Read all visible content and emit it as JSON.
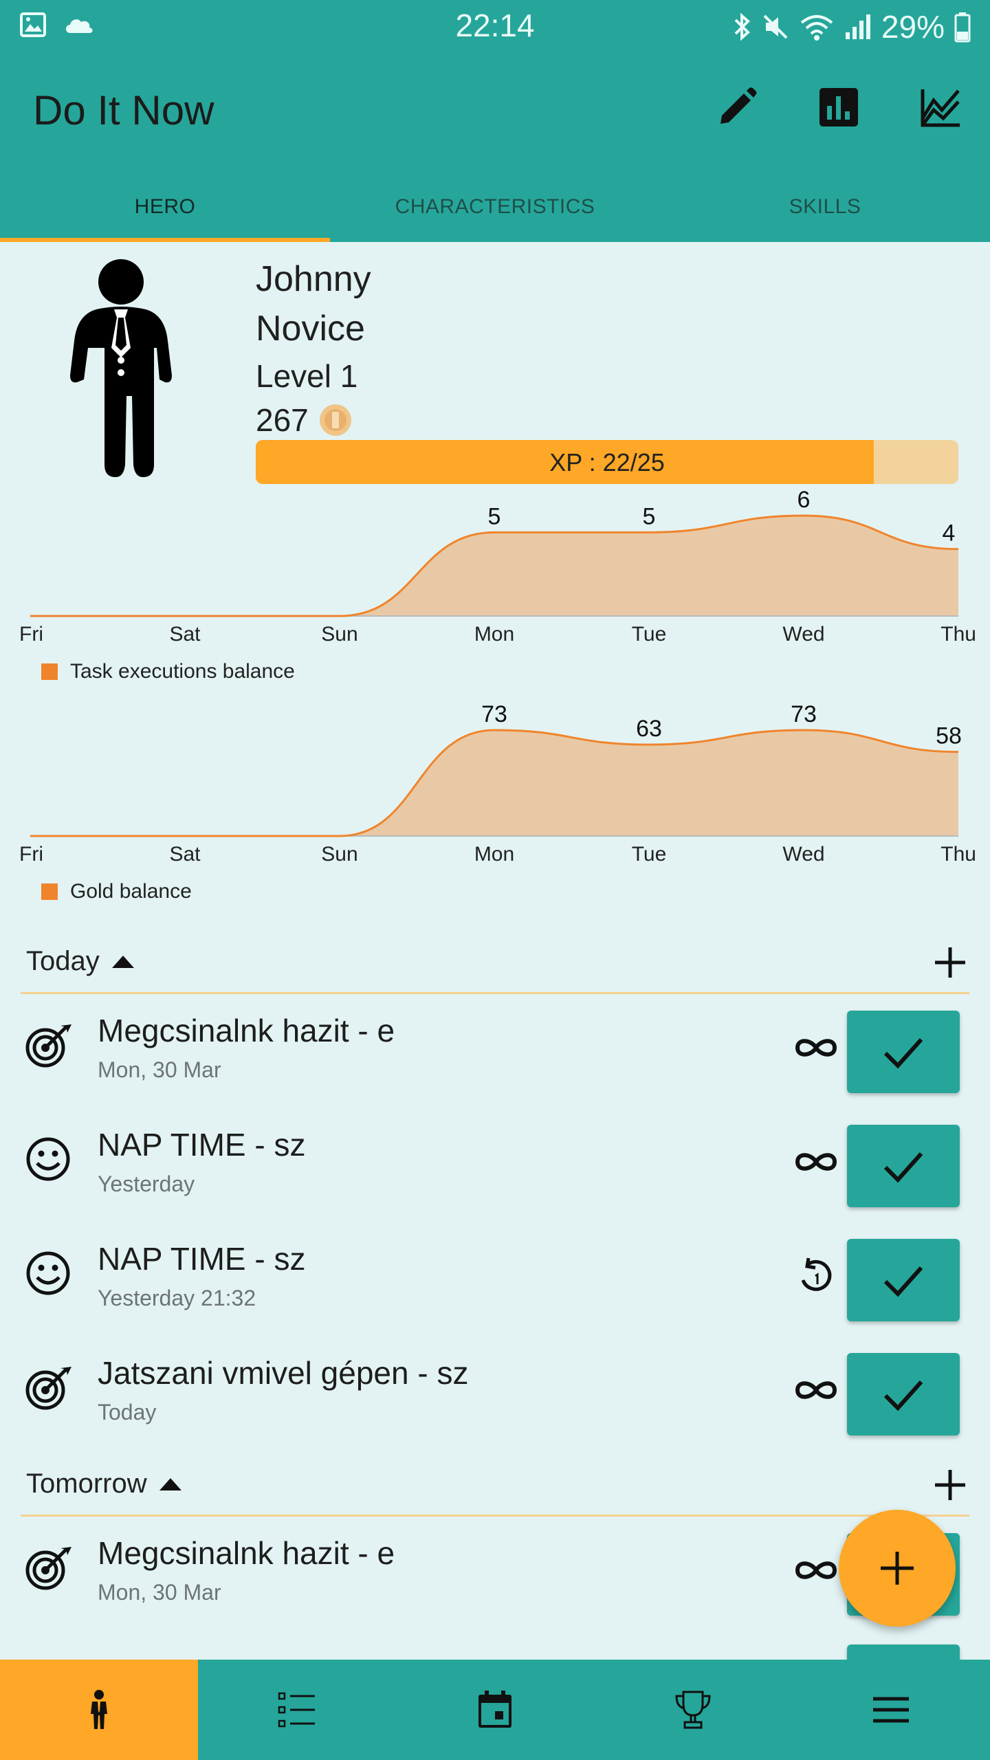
{
  "status_bar": {
    "time": "22:14",
    "battery": "29%",
    "left_icons": [
      "image-icon",
      "cloud-icon"
    ],
    "right_icons": [
      "bluetooth-icon",
      "mute-icon",
      "wifi-icon",
      "signal-icon",
      "battery-icon"
    ]
  },
  "app": {
    "title": "Do It Now",
    "toolbar_icons": [
      "edit-icon",
      "bar-chart-icon",
      "line-chart-icon"
    ]
  },
  "tabs": [
    {
      "label": "HERO",
      "active": true
    },
    {
      "label": "CHARACTERISTICS",
      "active": false
    },
    {
      "label": "SKILLS",
      "active": false
    }
  ],
  "hero": {
    "name": "Johnny",
    "rank": "Novice",
    "level": "Level 1",
    "gold": "267",
    "xp_label": "XP : 22/25",
    "xp_current": 22,
    "xp_max": 25
  },
  "chart_data": [
    {
      "type": "area",
      "categories": [
        "Fri",
        "Sat",
        "Sun",
        "Mon",
        "Tue",
        "Wed",
        "Thu"
      ],
      "series": [
        {
          "name": "Task executions balance",
          "values": [
            0,
            0,
            0,
            5,
            5,
            6,
            4
          ]
        }
      ],
      "data_labels": [
        "",
        "",
        "",
        "5",
        "5",
        "6",
        "4"
      ],
      "ylim": [
        0,
        6
      ],
      "grid": false,
      "legend": "bottom-left",
      "color": "#f0842c"
    },
    {
      "type": "area",
      "categories": [
        "Fri",
        "Sat",
        "Sun",
        "Mon",
        "Tue",
        "Wed",
        "Thu"
      ],
      "series": [
        {
          "name": "Gold balance",
          "values": [
            0,
            0,
            0,
            73,
            63,
            73,
            58
          ]
        }
      ],
      "data_labels": [
        "",
        "",
        "",
        "73",
        "63",
        "73",
        "58"
      ],
      "ylim": [
        0,
        73
      ],
      "grid": false,
      "legend": "bottom-left",
      "color": "#f0842c"
    }
  ],
  "sections": {
    "today": {
      "title": "Today",
      "tasks": [
        {
          "title": "Megcsinalnk hazit - e",
          "subtitle": "Mon, 30 Mar",
          "icon": "target-icon",
          "repeat": "infinity-icon"
        },
        {
          "title": "NAP TIME - sz",
          "subtitle": "Yesterday",
          "icon": "smiley-icon",
          "repeat": "infinity-icon"
        },
        {
          "title": "NAP TIME - sz",
          "subtitle": "Yesterday 21:32",
          "icon": "smiley-icon",
          "repeat": "repeat-once-icon"
        },
        {
          "title": "Jatszani vmivel gépen - sz",
          "subtitle": "Today",
          "icon": "target-icon",
          "repeat": "infinity-icon"
        }
      ]
    },
    "tomorrow": {
      "title": "Tomorrow",
      "tasks": [
        {
          "title": "Megcsinalnk hazit - e",
          "subtitle": "Mon, 30 Mar",
          "icon": "target-icon",
          "repeat": "infinity-icon"
        }
      ]
    }
  },
  "bottom_nav": [
    {
      "icon": "hero-icon",
      "active": true
    },
    {
      "icon": "task-list-icon",
      "active": false
    },
    {
      "icon": "calendar-icon",
      "active": false
    },
    {
      "icon": "trophy-icon",
      "active": false
    },
    {
      "icon": "menu-icon",
      "active": false
    }
  ],
  "colors": {
    "primary": "#26a69a",
    "accent": "#ffa726",
    "background": "#e3f3f3",
    "chart_line": "#f0842c",
    "chart_fill": "#e9c9a5"
  }
}
